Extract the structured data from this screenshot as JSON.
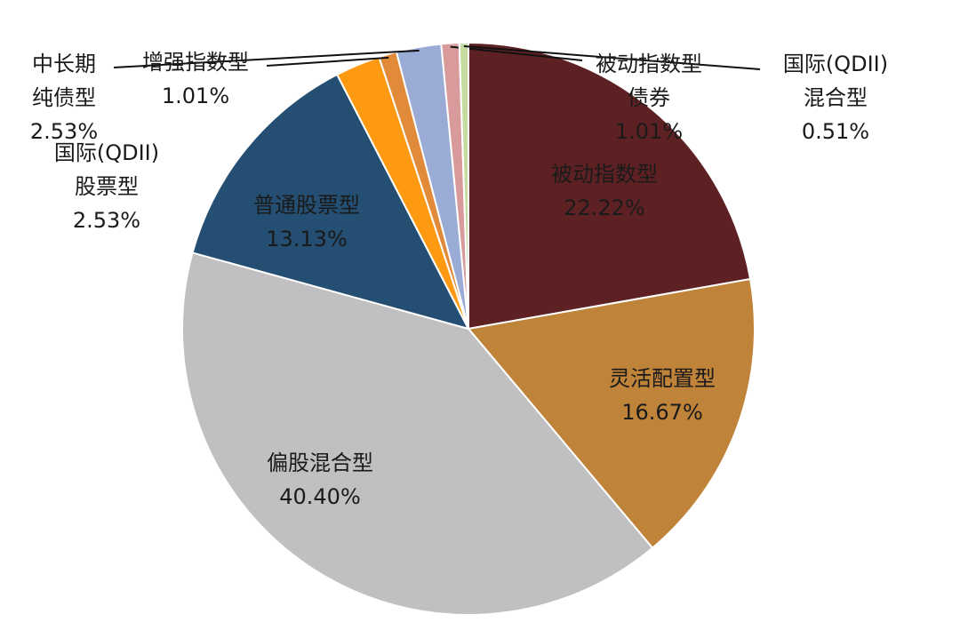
{
  "chart_data": {
    "type": "pie",
    "categories": [
      "被动指数型",
      "灵活配置型",
      "偏股混合型",
      "普通股票型",
      "国际(QDII)\n股票型",
      "增强指数型",
      "中长期\n纯债型",
      "被动指数型\n债券",
      "国际(QDII)\n混合型"
    ],
    "values": [
      22.22,
      16.67,
      40.4,
      13.13,
      2.53,
      1.01,
      2.53,
      1.01,
      0.51
    ],
    "value_labels": [
      "22.22%",
      "16.67%",
      "40.40%",
      "13.13%",
      "2.53%",
      "1.01%",
      "2.53%",
      "1.01%",
      "0.51%"
    ],
    "colors": [
      "#5e2123",
      "#c0833a",
      "#c0bfc1",
      "#244e72",
      "#fd9a12",
      "#e08a3a",
      "#9aabd6",
      "#d89a9a",
      "#c5dba0"
    ]
  }
}
